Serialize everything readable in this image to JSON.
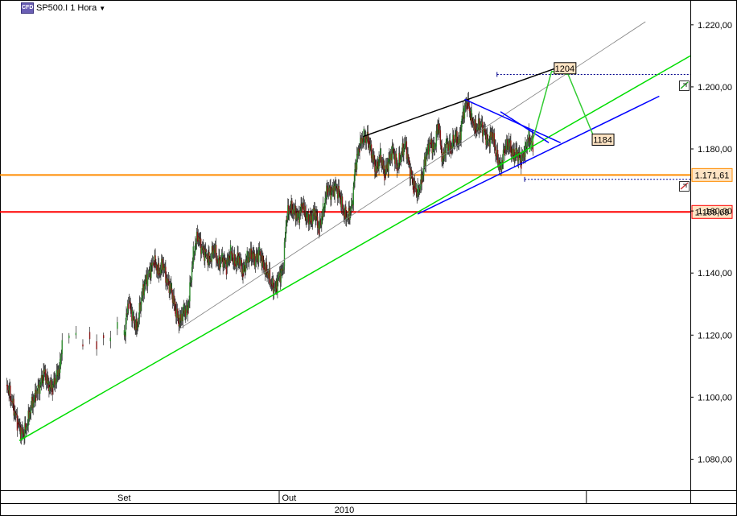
{
  "header": {
    "badge": "CFD",
    "symbol": "SP500.I 1 Hora",
    "dropdown_icon": "caret-down-icon"
  },
  "colors": {
    "up_candle": "#2e8b2e",
    "down_candle": "#8b1a1a",
    "uptrend_line": "#00dd00",
    "channel_line": "#808080",
    "triangle_line": "#0000ff",
    "resistance_line": "#000000",
    "projection_line": "#33cc33",
    "orange_level": "#ff8c00",
    "red_level": "#ff0000",
    "price_label_bg": "#ffe4c4"
  },
  "chart_data": {
    "type": "candlestick",
    "title": "SP500.I 1 Hora",
    "y_axis": {
      "min": 1070,
      "max": 1228,
      "ticks": [
        1080,
        1100,
        1120,
        1140,
        1160,
        1180,
        1200,
        1220
      ],
      "tick_labels": [
        "1.080,00",
        "1.100,00",
        "1.120,00",
        "1.140,00",
        "1.160,00",
        "1.180,00",
        "1.200,00",
        "1.220,00"
      ]
    },
    "x_axis": {
      "month_labels": [
        "Set",
        "Out"
      ],
      "year_label": "2010",
      "month_boundaries": [
        0,
        40.5,
        85,
        100
      ]
    },
    "price_series": [
      [
        0,
        1106
      ],
      [
        1,
        1104
      ],
      [
        1.8,
        1098
      ],
      [
        2.5,
        1092
      ],
      [
        3.2,
        1088
      ],
      [
        3.8,
        1090
      ],
      [
        4.5,
        1097
      ],
      [
        5.2,
        1101
      ],
      [
        5.8,
        1104
      ],
      [
        6.4,
        1108
      ],
      [
        7,
        1104
      ],
      [
        7.6,
        1103
      ],
      [
        8.2,
        1107
      ],
      [
        8.7,
        1110
      ],
      [
        9,
        1118
      ],
      [
        10,
        1119
      ],
      [
        11,
        1120
      ],
      [
        12,
        1117
      ],
      [
        13,
        1121
      ],
      [
        14,
        1118
      ],
      [
        15,
        1120
      ],
      [
        16,
        1118
      ],
      [
        17,
        1122
      ],
      [
        18,
        1120
      ],
      [
        18.6,
        1131
      ],
      [
        19.2,
        1126
      ],
      [
        19.8,
        1122
      ],
      [
        20.5,
        1132
      ],
      [
        21,
        1137
      ],
      [
        21.6,
        1140
      ],
      [
        22.3,
        1144
      ],
      [
        23,
        1140
      ],
      [
        23.6,
        1143
      ],
      [
        24.2,
        1137
      ],
      [
        24.8,
        1135
      ],
      [
        25.4,
        1128
      ],
      [
        26,
        1124
      ],
      [
        26.6,
        1128
      ],
      [
        27.2,
        1128
      ],
      [
        28,
        1146
      ],
      [
        28.6,
        1152
      ],
      [
        29.2,
        1148
      ],
      [
        29.8,
        1146
      ],
      [
        30.4,
        1144
      ],
      [
        31,
        1148
      ],
      [
        31.6,
        1143
      ],
      [
        32.2,
        1145
      ],
      [
        32.8,
        1142
      ],
      [
        33.4,
        1147
      ],
      [
        34,
        1143
      ],
      [
        34.6,
        1145
      ],
      [
        35.2,
        1140
      ],
      [
        35.8,
        1145
      ],
      [
        36.4,
        1146
      ],
      [
        37,
        1144
      ],
      [
        37.6,
        1147
      ],
      [
        38.2,
        1142
      ],
      [
        38.8,
        1140
      ],
      [
        39.4,
        1136
      ],
      [
        39.9,
        1135
      ],
      [
        40.4,
        1139
      ],
      [
        41,
        1141
      ],
      [
        41.5,
        1158
      ],
      [
        42,
        1161
      ],
      [
        42.6,
        1160
      ],
      [
        43.2,
        1158
      ],
      [
        43.8,
        1162
      ],
      [
        44.4,
        1158
      ],
      [
        45,
        1157
      ],
      [
        45.6,
        1160
      ],
      [
        46.2,
        1154
      ],
      [
        46.8,
        1160
      ],
      [
        47.4,
        1167
      ],
      [
        48,
        1166
      ],
      [
        48.6,
        1168
      ],
      [
        49.2,
        1165
      ],
      [
        49.8,
        1159
      ],
      [
        50.4,
        1158
      ],
      [
        51,
        1162
      ],
      [
        51.5,
        1175
      ],
      [
        52.1,
        1181
      ],
      [
        52.7,
        1184
      ],
      [
        53.3,
        1183
      ],
      [
        53.9,
        1178
      ],
      [
        54.5,
        1173
      ],
      [
        55.1,
        1178
      ],
      [
        55.7,
        1172
      ],
      [
        56.3,
        1176
      ],
      [
        56.9,
        1180
      ],
      [
        57.5,
        1174
      ],
      [
        58.1,
        1178
      ],
      [
        58.7,
        1182
      ],
      [
        59.3,
        1174
      ],
      [
        59.9,
        1168
      ],
      [
        60.5,
        1166
      ],
      [
        61.1,
        1170
      ],
      [
        61.7,
        1178
      ],
      [
        62.3,
        1182
      ],
      [
        62.9,
        1180
      ],
      [
        63.5,
        1188
      ],
      [
        64.1,
        1176
      ],
      [
        64.7,
        1182
      ],
      [
        65.3,
        1180
      ],
      [
        65.9,
        1184
      ],
      [
        66.5,
        1182
      ],
      [
        67.1,
        1192
      ],
      [
        67.7,
        1195
      ],
      [
        68.3,
        1190
      ],
      [
        68.9,
        1186
      ],
      [
        69.5,
        1188
      ],
      [
        70.1,
        1186
      ],
      [
        70.7,
        1182
      ],
      [
        71.3,
        1185
      ],
      [
        71.9,
        1178
      ],
      [
        72.5,
        1174
      ],
      [
        73.1,
        1180
      ],
      [
        73.7,
        1182
      ],
      [
        74.3,
        1178
      ],
      [
        74.9,
        1179
      ],
      [
        75.5,
        1176
      ],
      [
        76.1,
        1180
      ],
      [
        76.6,
        1184
      ],
      [
        77.2,
        1181
      ]
    ],
    "trend_lines": [
      {
        "name": "uptrend",
        "color_key": "uptrend_line",
        "points": [
          [
            2.8,
            1086
          ],
          [
            100,
            1210
          ]
        ]
      },
      {
        "name": "channel",
        "color_key": "channel_line",
        "points": [
          [
            26,
            1122
          ],
          [
            93.5,
            1221
          ]
        ]
      },
      {
        "name": "resistance",
        "color_key": "resistance_line",
        "points": [
          [
            52.6,
            1184
          ],
          [
            80.5,
            1206
          ]
        ]
      },
      {
        "name": "triangle-lower",
        "color_key": "triangle_line",
        "points": [
          [
            60.5,
            1159
          ],
          [
            95.5,
            1197
          ]
        ]
      },
      {
        "name": "triangle-upper",
        "color_key": "triangle_line",
        "points": [
          [
            67.3,
            1196
          ],
          [
            81.2,
            1182
          ]
        ]
      },
      {
        "name": "triangle-inner",
        "color_key": "triangle_line",
        "points": [
          [
            72.5,
            1192
          ],
          [
            79.5,
            1182
          ]
        ]
      },
      {
        "name": "projection",
        "color_key": "projection_line",
        "points": [
          [
            76.7,
            1179
          ],
          [
            79.9,
            1205
          ],
          [
            82.3,
            1204
          ],
          [
            86,
            1184
          ]
        ]
      }
    ],
    "horizontal_levels": [
      {
        "value": 1171.61,
        "label": "1.171,61",
        "color_key": "orange_level"
      },
      {
        "value": 1159.69,
        "label": "1.159,69",
        "color_key": "red_level"
      }
    ],
    "dotted_levels": [
      {
        "value": 1204,
        "x_start": 72
      },
      {
        "value": 1170.2,
        "x_start": 76
      }
    ],
    "price_labels": [
      {
        "text": "1204",
        "x": 81.8,
        "y": 1206
      },
      {
        "text": "1184",
        "x": 87.3,
        "y": 1183
      }
    ]
  }
}
